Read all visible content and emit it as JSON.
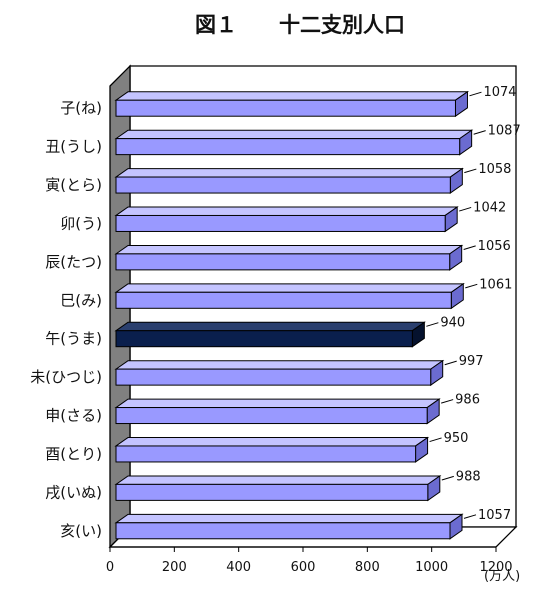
{
  "chart_data": {
    "type": "bar",
    "orientation": "horizontal",
    "title": "図１　　十二支別人口",
    "unit_label": "(万人)",
    "categories": [
      "子(ね)",
      "丑(うし)",
      "寅(とら)",
      "卯(う)",
      "辰(たつ)",
      "巳(み)",
      "午(うま)",
      "未(ひつじ)",
      "申(さる)",
      "酉(とり)",
      "戌(いぬ)",
      "亥(い)"
    ],
    "values": [
      1074,
      1087,
      1058,
      1042,
      1056,
      1061,
      940,
      997,
      986,
      950,
      988,
      1057
    ],
    "value_labels": [
      "1074",
      "1087",
      "1058",
      "1042",
      "1056",
      "1061",
      "940",
      "997",
      "986",
      "950",
      "988",
      "1057"
    ],
    "xlim": [
      0,
      1200
    ],
    "xticks": [
      0,
      200,
      400,
      600,
      800,
      1000,
      1200
    ],
    "xtick_labels": [
      "0",
      "200",
      "400",
      "600",
      "800",
      "1000",
      "1200"
    ],
    "highlight_index": 6,
    "grid": false,
    "legend": "none",
    "three_d": true,
    "colors": {
      "bar": "#9999ff",
      "bar_top": "#c4c4ff",
      "bar_side": "#6b6bd0",
      "highlight": "#0a1f4d",
      "highlight_top": "#2a3f6e",
      "highlight_side": "#05122e",
      "wall": "#808080",
      "outline": "#000000"
    }
  }
}
